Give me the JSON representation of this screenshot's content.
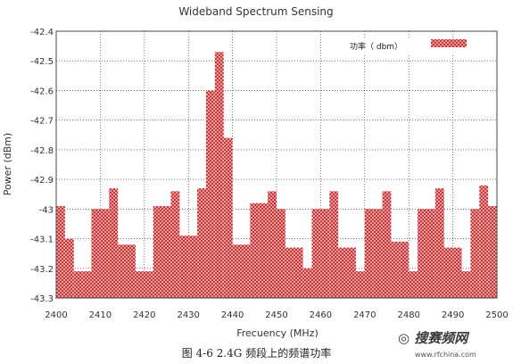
{
  "chart_data": {
    "type": "bar",
    "title": "Wideband Spectrum Sensing",
    "xlabel": "Frecuency (MHz)",
    "ylabel": "Power (dBm)",
    "xlim": [
      2400,
      2500
    ],
    "ylim": [
      -43.3,
      -42.4
    ],
    "x_ticks": [
      "2400",
      "2410",
      "2420",
      "2430",
      "2440",
      "2450",
      "2460",
      "2470",
      "2480",
      "2490",
      "2500"
    ],
    "y_ticks": [
      "-42.4",
      "-42.5",
      "-42.6",
      "-42.7",
      "-42.8",
      "-42.9",
      "-43",
      "-43.1",
      "-43.2",
      "-43.3"
    ],
    "legend": "top-right",
    "grid": true,
    "series": [
      {
        "name": "功率（ dbm）",
        "color": "#d23a3a",
        "bin_width_mhz": 2,
        "x": [
          2401,
          2403,
          2405,
          2407,
          2409,
          2411,
          2413,
          2415,
          2417,
          2419,
          2421,
          2423,
          2425,
          2427,
          2429,
          2431,
          2433,
          2435,
          2437,
          2439,
          2441,
          2443,
          2445,
          2447,
          2449,
          2451,
          2453,
          2455,
          2457,
          2459,
          2461,
          2463,
          2465,
          2467,
          2469,
          2471,
          2473,
          2475,
          2477,
          2479,
          2481,
          2483,
          2485,
          2487,
          2489,
          2491,
          2493,
          2495,
          2497,
          2499
        ],
        "values": [
          -42.99,
          -43.1,
          -43.21,
          -43.21,
          -43.0,
          -43.0,
          -42.93,
          -43.12,
          -43.12,
          -43.21,
          -43.21,
          -42.99,
          -42.99,
          -42.94,
          -43.09,
          -43.09,
          -42.93,
          -42.6,
          -42.47,
          -42.76,
          -43.12,
          -43.12,
          -42.98,
          -42.98,
          -42.94,
          -43.0,
          -43.13,
          -43.13,
          -43.2,
          -43.0,
          -43.0,
          -42.94,
          -43.13,
          -43.13,
          -43.21,
          -43.0,
          -43.0,
          -42.94,
          -43.11,
          -43.11,
          -43.21,
          -43.0,
          -43.0,
          -42.93,
          -43.13,
          -43.13,
          -43.21,
          -43.0,
          -42.92,
          -42.99
        ]
      }
    ]
  },
  "caption": "图 4-6 2.4G 频段上的频谱功率",
  "watermark": "◎ 搜赛频网",
  "watermark_url": "www.rfchina.com"
}
